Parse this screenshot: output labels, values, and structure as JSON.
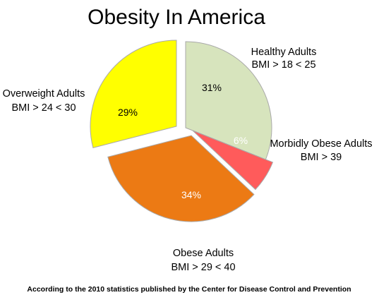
{
  "chart_data": {
    "type": "pie",
    "title": "Obesity In America",
    "footnote": "According to the 2010 statistics published by the Center for Disease Control and Prevention",
    "slices": [
      {
        "label": "Healthy Adults",
        "sublabel": "BMI > 18 < 25",
        "value": 31,
        "value_label": "31%",
        "color": "#d7e4bd",
        "text_color": "#000000"
      },
      {
        "label": "Morbidly Obese Adults",
        "sublabel": "BMI > 39",
        "value": 6,
        "value_label": "6%",
        "color": "#ff5b5b",
        "text_color": "#ffffff"
      },
      {
        "label": "Obese Adults",
        "sublabel": "BMI > 29 < 40",
        "value": 34,
        "value_label": "34%",
        "color": "#ec7a14",
        "text_color": "#ffffff"
      },
      {
        "label": "Overweight Adults",
        "sublabel": "BMI > 24 < 30",
        "value": 29,
        "value_label": "29%",
        "color": "#ffff00",
        "text_color": "#000000"
      }
    ],
    "legend": "none",
    "exploded": true
  }
}
